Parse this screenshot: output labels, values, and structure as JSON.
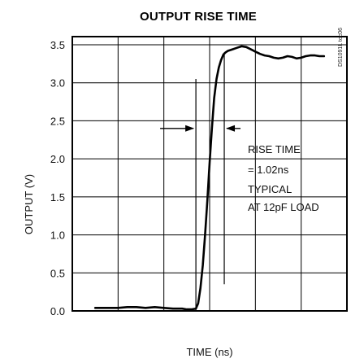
{
  "chart_data": {
    "type": "line",
    "title": "OUTPUT RISE TIME",
    "xlabel": "TIME (ns)",
    "ylabel": "OUTPUT (V)",
    "figure_code": "DS1091L toc06",
    "xlim": [
      0,
      6
    ],
    "ylim": [
      0,
      3.5
    ],
    "yticks": [
      0.0,
      3.5,
      3.0,
      2.5,
      2.0,
      1.5,
      1.0,
      0.5
    ],
    "ytick_labels": [
      "0.0",
      "3.5",
      "3.0",
      "2.5",
      "2.0",
      "1.5",
      "1.0",
      "0.5"
    ],
    "x_gridlines": [
      1,
      2,
      3,
      4,
      5
    ],
    "grid": true,
    "series": [
      {
        "x": [
          0.5,
          0.8,
          1.0,
          1.2,
          1.4,
          1.6,
          1.8,
          2.0,
          2.2,
          2.4,
          2.5,
          2.6,
          2.7,
          2.75,
          2.8,
          2.85,
          2.9,
          2.95,
          3.0,
          3.05,
          3.1,
          3.15,
          3.2,
          3.25,
          3.3,
          3.35,
          3.4,
          3.5,
          3.6,
          3.7,
          3.8,
          3.9,
          4.0,
          4.1,
          4.2,
          4.3,
          4.4,
          4.5,
          4.6,
          4.7,
          4.8,
          4.9,
          5.0,
          5.1,
          5.2,
          5.3,
          5.4,
          5.5
        ],
        "y": [
          0.04,
          0.04,
          0.04,
          0.05,
          0.05,
          0.04,
          0.05,
          0.04,
          0.03,
          0.03,
          0.02,
          0.02,
          0.03,
          0.1,
          0.3,
          0.6,
          1.0,
          1.45,
          1.95,
          2.4,
          2.8,
          3.05,
          3.2,
          3.3,
          3.37,
          3.4,
          3.42,
          3.44,
          3.46,
          3.48,
          3.47,
          3.44,
          3.41,
          3.38,
          3.36,
          3.35,
          3.33,
          3.32,
          3.33,
          3.35,
          3.34,
          3.32,
          3.33,
          3.35,
          3.36,
          3.36,
          3.35,
          3.35
        ]
      }
    ],
    "markers": [
      {
        "x": 2.7,
        "y_from": 0.0,
        "y_to": 3.05
      },
      {
        "x": 3.32,
        "y_from": 0.35,
        "y_to": 3.4
      }
    ],
    "annotation": {
      "lines": [
        "RISE TIME",
        "= 1.02ns",
        "TYPICAL",
        "AT 12pF LOAD"
      ],
      "arrow_y": 2.4
    }
  }
}
